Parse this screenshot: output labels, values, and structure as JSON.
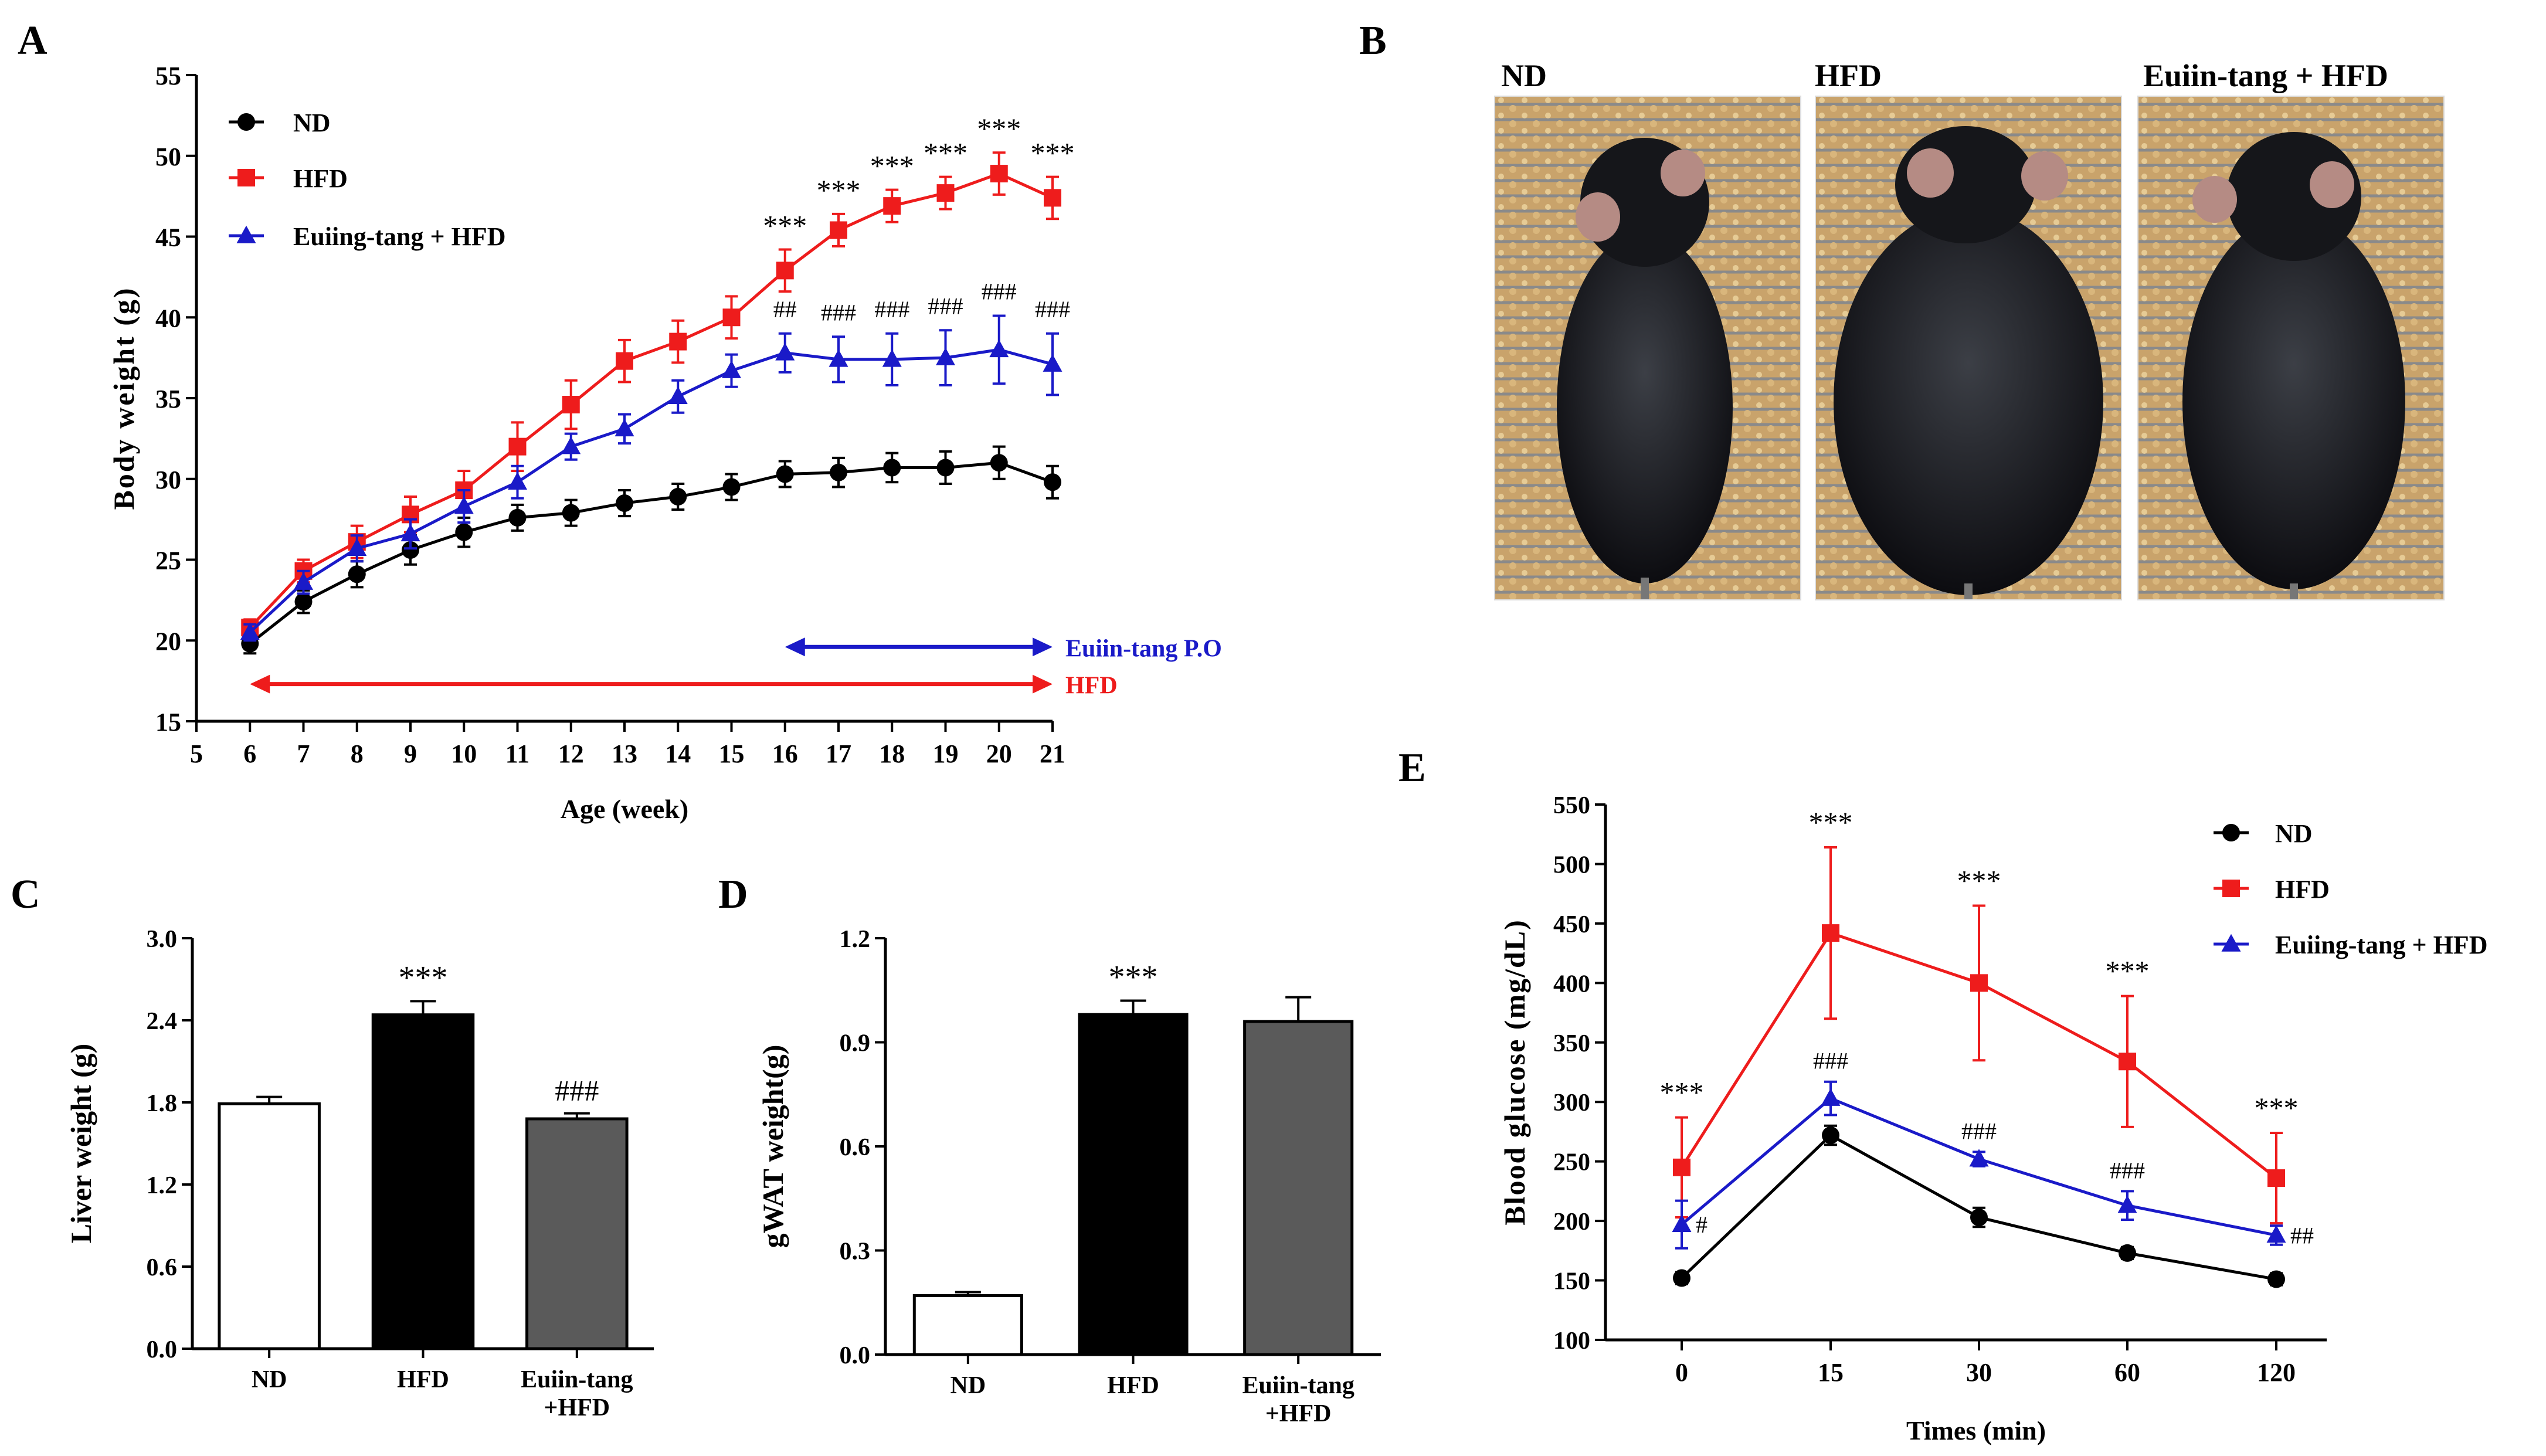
{
  "panels": {
    "A": "A",
    "B": "B",
    "C": "C",
    "D": "D",
    "E": "E"
  },
  "colors": {
    "nd": "#000000",
    "hfd": "#ee1c1c",
    "euiin": "#1a1ac8",
    "bar_nd": "#ffffff",
    "bar_hfd": "#000000",
    "bar_euiin": "#5a5a5a"
  },
  "photos": {
    "labels": [
      "ND",
      "HFD",
      "Euiin-tang + HFD"
    ]
  },
  "chart_data": [
    {
      "id": "A",
      "type": "line",
      "xlabel": "Age (week)",
      "ylabel": "Body weight (g)",
      "xlim": [
        5,
        21
      ],
      "ylim": [
        15,
        55
      ],
      "xticks": [
        5,
        6,
        7,
        8,
        9,
        10,
        11,
        12,
        13,
        14,
        15,
        16,
        17,
        18,
        19,
        20,
        21
      ],
      "yticks": [
        15,
        20,
        25,
        30,
        35,
        40,
        45,
        50,
        55
      ],
      "x": [
        6,
        7,
        8,
        9,
        10,
        11,
        12,
        13,
        14,
        15,
        16,
        17,
        18,
        19,
        20,
        21
      ],
      "series": [
        {
          "name": "ND",
          "marker": "circle",
          "values": [
            19.8,
            22.4,
            24.1,
            25.6,
            26.7,
            27.6,
            27.9,
            28.5,
            28.9,
            29.5,
            30.3,
            30.4,
            30.7,
            30.7,
            31.0,
            29.8
          ],
          "errors": [
            0.6,
            0.7,
            0.8,
            0.9,
            0.9,
            0.8,
            0.8,
            0.8,
            0.8,
            0.8,
            0.8,
            0.9,
            0.9,
            1.0,
            1.0,
            1.0
          ]
        },
        {
          "name": "HFD",
          "marker": "square",
          "values": [
            20.8,
            24.3,
            26.1,
            27.8,
            29.3,
            32.0,
            34.6,
            37.3,
            38.5,
            40.0,
            42.9,
            45.4,
            46.9,
            47.7,
            48.9,
            47.4
          ],
          "errors": [
            0.5,
            0.7,
            1.0,
            1.1,
            1.2,
            1.5,
            1.5,
            1.3,
            1.3,
            1.3,
            1.3,
            1.0,
            1.0,
            1.0,
            1.3,
            1.3
          ]
        },
        {
          "name": "Euiing-tang + HFD",
          "marker": "triangle",
          "values": [
            20.5,
            23.6,
            25.7,
            26.6,
            28.3,
            29.8,
            32.0,
            33.1,
            35.1,
            36.7,
            37.8,
            37.4,
            37.4,
            37.5,
            38.0,
            37.1
          ],
          "errors": [
            0.5,
            0.7,
            0.8,
            0.9,
            1.0,
            1.0,
            0.8,
            0.9,
            1.0,
            1.0,
            1.2,
            1.4,
            1.6,
            1.7,
            2.1,
            1.9
          ]
        }
      ],
      "annotations": [
        {
          "x": 16,
          "text": "***",
          "series": "HFD"
        },
        {
          "x": 17,
          "text": "***",
          "series": "HFD"
        },
        {
          "x": 18,
          "text": "***",
          "series": "HFD"
        },
        {
          "x": 19,
          "text": "***",
          "series": "HFD"
        },
        {
          "x": 20,
          "text": "***",
          "series": "HFD"
        },
        {
          "x": 21,
          "text": "***",
          "series": "HFD"
        },
        {
          "x": 16,
          "text": "##",
          "series": "Euiing-tang + HFD"
        },
        {
          "x": 17,
          "text": "###",
          "series": "Euiing-tang + HFD"
        },
        {
          "x": 18,
          "text": "###",
          "series": "Euiing-tang + HFD"
        },
        {
          "x": 19,
          "text": "###",
          "series": "Euiing-tang + HFD"
        },
        {
          "x": 20,
          "text": "###",
          "series": "Euiing-tang + HFD"
        },
        {
          "x": 21,
          "text": "###",
          "series": "Euiing-tang + HFD"
        }
      ],
      "ranges": [
        {
          "label": "Euiin-tang  P.O",
          "from": 16,
          "to": 21,
          "y": 19.6,
          "color": "euiin"
        },
        {
          "label": "HFD",
          "from": 6,
          "to": 21,
          "y": 17.3,
          "color": "hfd"
        }
      ]
    },
    {
      "id": "C",
      "type": "bar",
      "ylabel": "Liver weight (g)",
      "ylim": [
        0,
        3.0
      ],
      "yticks": [
        "0.0",
        "0.6",
        "1.2",
        "1.8",
        "2.4",
        "3.0"
      ],
      "categories": [
        "ND",
        "HFD",
        "Euiin-tang\n+HFD"
      ],
      "values": [
        1.79,
        2.44,
        1.68
      ],
      "errors": [
        0.05,
        0.1,
        0.04
      ],
      "annotations": [
        "",
        "***",
        "###"
      ]
    },
    {
      "id": "D",
      "type": "bar",
      "ylabel": "gWAT weight(g)",
      "ylim": [
        0,
        1.2
      ],
      "yticks": [
        "0.0",
        "0.3",
        "0.6",
        "0.9",
        "1.2"
      ],
      "categories": [
        "ND",
        "HFD",
        "Euiin-tang\n+HFD"
      ],
      "values": [
        0.17,
        0.98,
        0.96
      ],
      "errors": [
        0.01,
        0.04,
        0.07
      ],
      "annotations": [
        "",
        "***",
        ""
      ]
    },
    {
      "id": "E",
      "type": "line",
      "xlabel": "Times (min)",
      "ylabel": "Blood glucose (mg/dL)",
      "ylim": [
        100,
        550
      ],
      "yticks": [
        100,
        150,
        200,
        250,
        300,
        350,
        400,
        450,
        500,
        550
      ],
      "categories": [
        "0",
        "15",
        "30",
        "60",
        "120"
      ],
      "series": [
        {
          "name": "ND",
          "marker": "circle",
          "values": [
            152,
            272,
            203,
            173,
            151
          ],
          "errors": [
            5,
            8,
            8,
            5,
            5
          ]
        },
        {
          "name": "HFD",
          "marker": "square",
          "values": [
            245,
            442,
            400,
            334,
            236
          ],
          "errors": [
            42,
            72,
            65,
            55,
            38
          ]
        },
        {
          "name": "Euiing-tang + HFD",
          "marker": "triangle",
          "values": [
            197,
            303,
            252,
            213,
            188
          ],
          "errors": [
            20,
            14,
            6,
            12,
            8
          ]
        }
      ],
      "annotations": [
        {
          "i": 0,
          "text": "***",
          "series": "HFD"
        },
        {
          "i": 1,
          "text": "***",
          "series": "HFD"
        },
        {
          "i": 2,
          "text": "***",
          "series": "HFD"
        },
        {
          "i": 3,
          "text": "***",
          "series": "HFD"
        },
        {
          "i": 4,
          "text": "***",
          "series": "HFD"
        },
        {
          "i": 0,
          "text": "#",
          "series": "Euiing-tang + HFD"
        },
        {
          "i": 1,
          "text": "###",
          "series": "Euiing-tang + HFD"
        },
        {
          "i": 2,
          "text": "###",
          "series": "Euiing-tang + HFD"
        },
        {
          "i": 3,
          "text": "###",
          "series": "Euiing-tang + HFD"
        },
        {
          "i": 4,
          "text": "##",
          "series": "Euiing-tang + HFD"
        }
      ]
    }
  ]
}
